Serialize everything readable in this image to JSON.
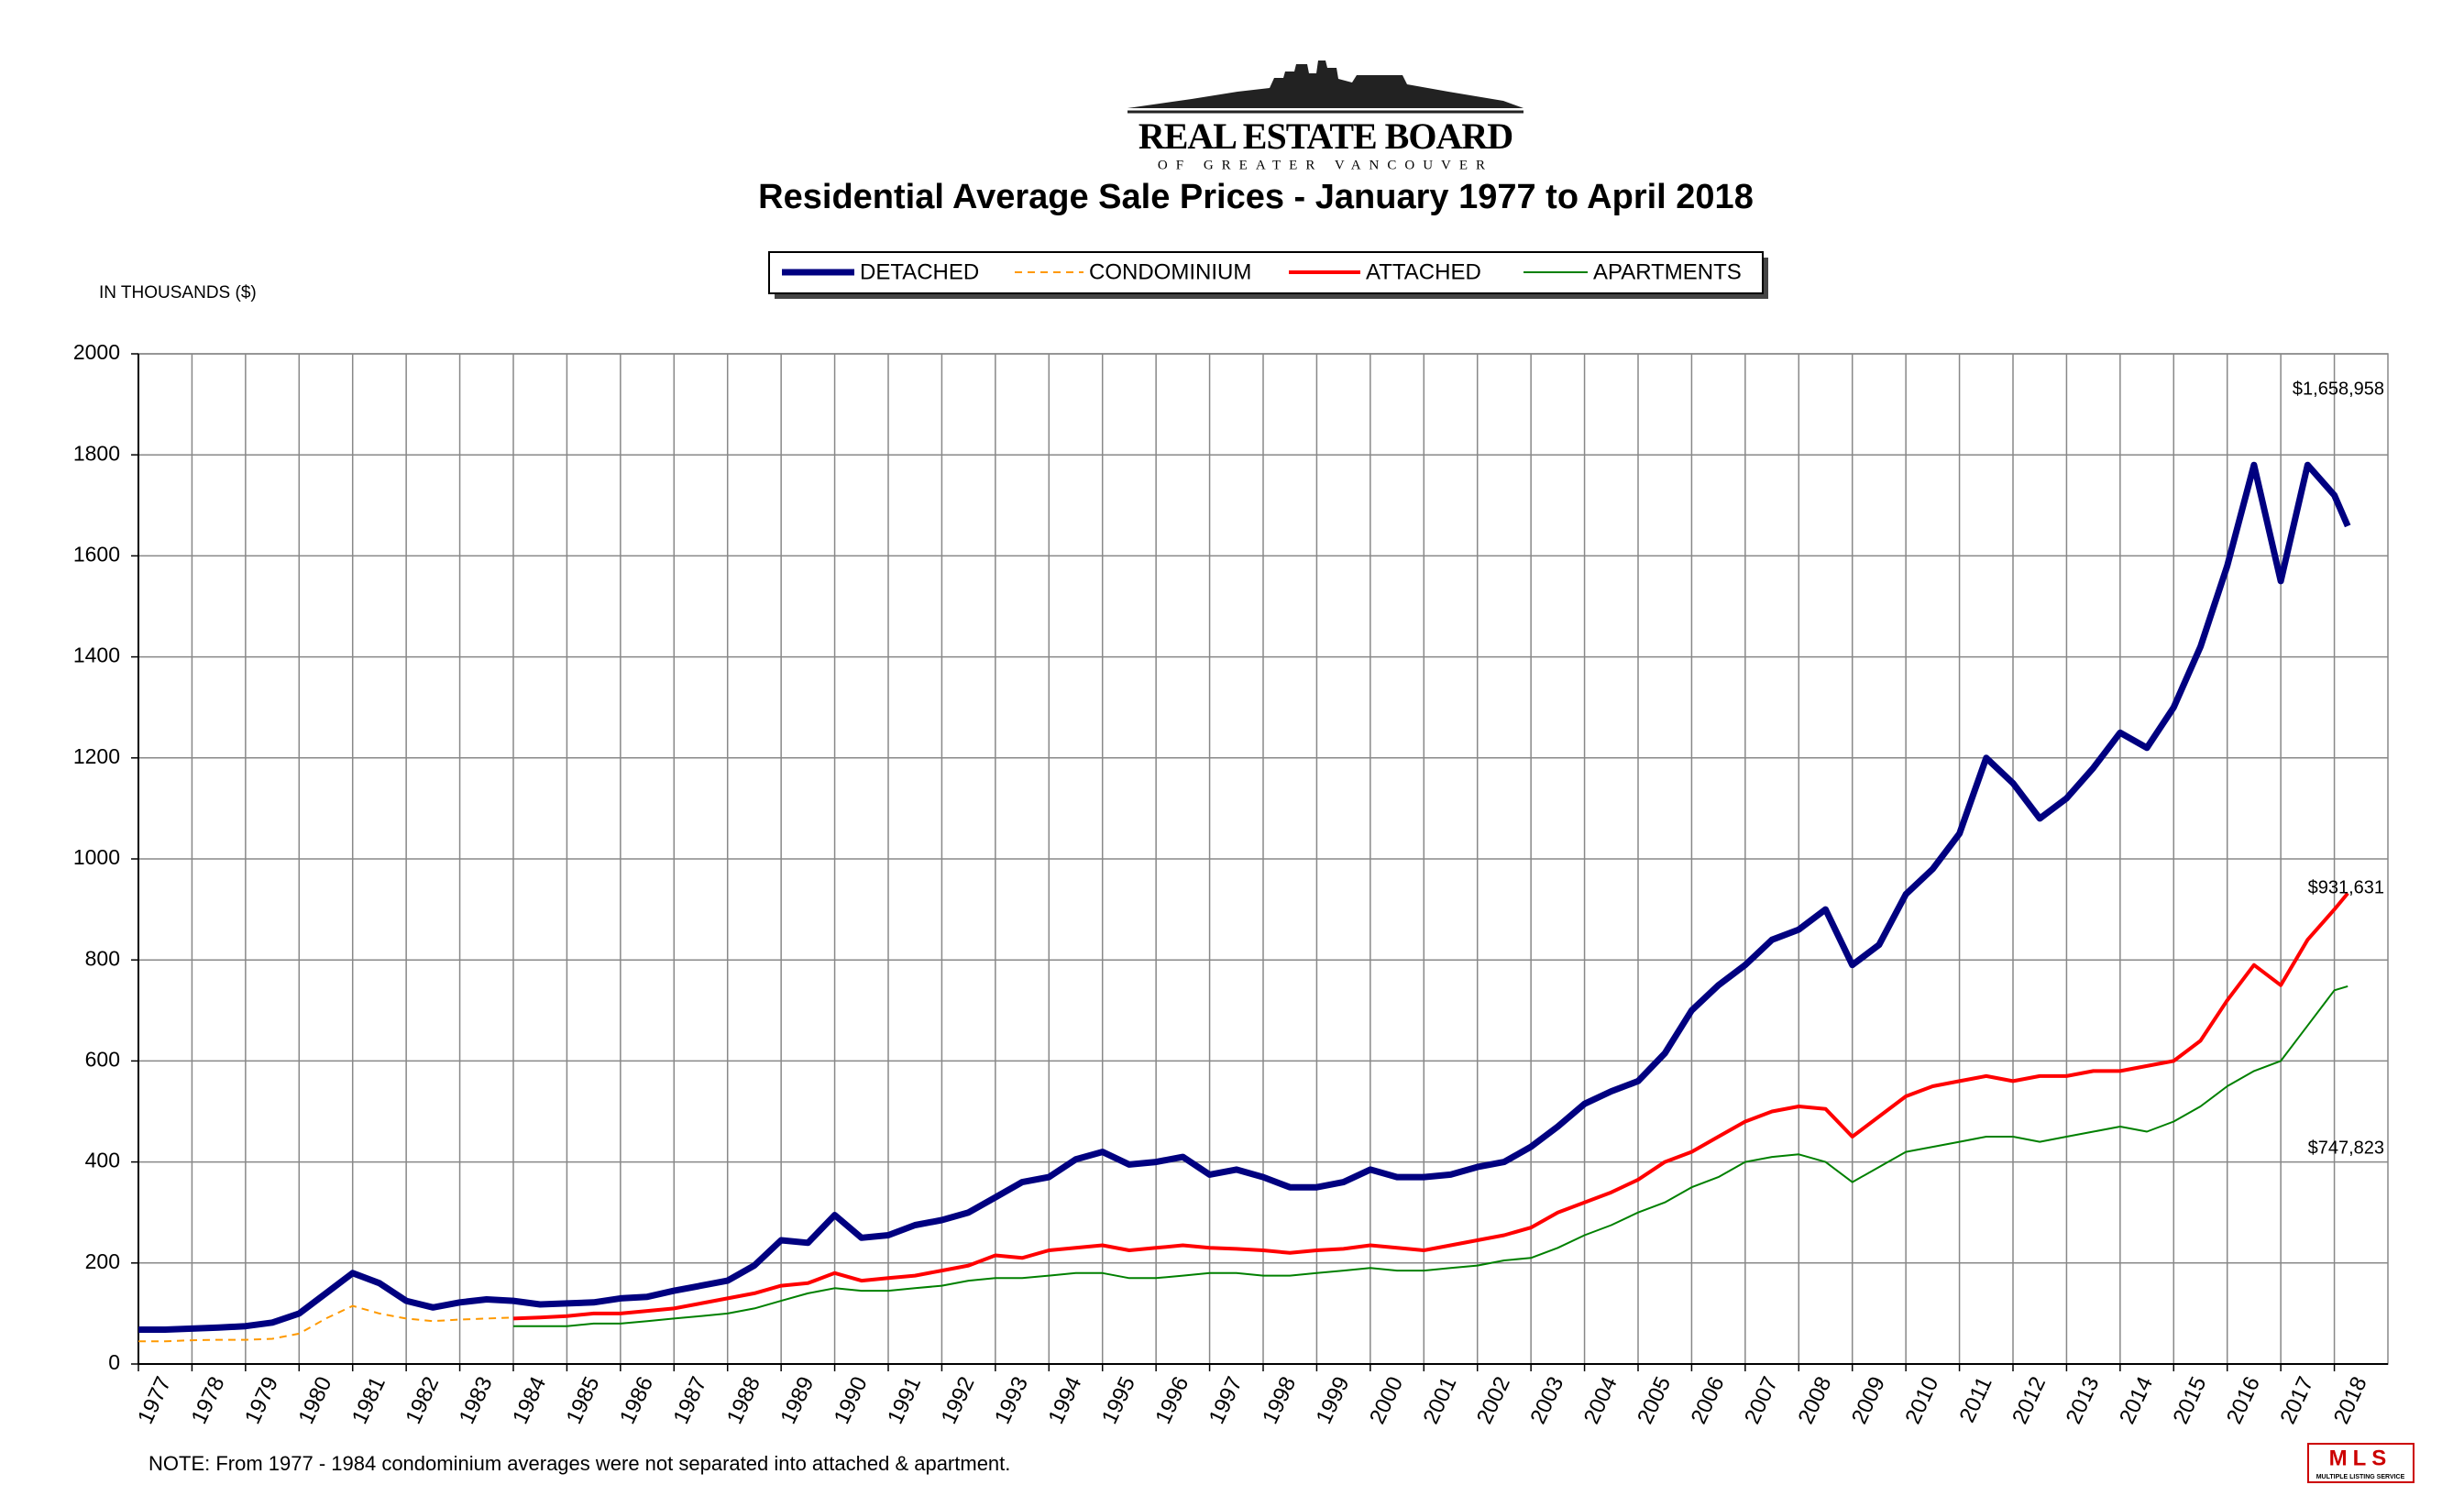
{
  "header": {
    "logo_title": "REAL ESTATE BOARD",
    "logo_subtitle": "OF GREATER VANCOUVER"
  },
  "chart_data": {
    "type": "line",
    "title": "Residential Average Sale Prices  -  January 1977 to April 2018",
    "y_label": "IN THOUSANDS ($)",
    "note": "NOTE:  From 1977 - 1984 condominium averages were not separated into attached & apartment.",
    "legend": "top-center",
    "grid": true,
    "xlim": [
      1977,
      2019
    ],
    "xticks": [
      1977,
      1978,
      1979,
      1980,
      1981,
      1982,
      1983,
      1984,
      1985,
      1986,
      1987,
      1988,
      1989,
      1990,
      1991,
      1992,
      1993,
      1994,
      1995,
      1996,
      1997,
      1998,
      1999,
      2000,
      2001,
      2002,
      2003,
      2004,
      2005,
      2006,
      2007,
      2008,
      2009,
      2010,
      2011,
      2012,
      2013,
      2014,
      2015,
      2016,
      2017,
      2018
    ],
    "ylim": [
      0,
      2000
    ],
    "yticks": [
      0,
      200,
      400,
      600,
      800,
      1000,
      1200,
      1400,
      1600,
      1800,
      2000
    ],
    "x": [
      1977,
      1977.5,
      1978,
      1978.5,
      1979,
      1979.5,
      1980,
      1980.5,
      1981,
      1981.5,
      1982,
      1982.5,
      1983,
      1983.5,
      1984,
      1984.5,
      1985,
      1985.5,
      1986,
      1986.5,
      1987,
      1987.5,
      1988,
      1988.5,
      1989,
      1989.5,
      1990,
      1990.5,
      1991,
      1991.5,
      1992,
      1992.5,
      1993,
      1993.5,
      1994,
      1994.5,
      1995,
      1995.5,
      1996,
      1996.5,
      1997,
      1997.5,
      1998,
      1998.5,
      1999,
      1999.5,
      2000,
      2000.5,
      2001,
      2001.5,
      2002,
      2002.5,
      2003,
      2003.5,
      2004,
      2004.5,
      2005,
      2005.5,
      2006,
      2006.5,
      2007,
      2007.5,
      2008,
      2008.5,
      2009,
      2009.5,
      2010,
      2010.5,
      2011,
      2011.5,
      2012,
      2012.5,
      2013,
      2013.5,
      2014,
      2014.5,
      2015,
      2015.5,
      2016,
      2016.5,
      2017,
      2017.5,
      2018,
      2018.25
    ],
    "series": [
      {
        "name": "DETACHED",
        "color": "#000080",
        "line_style": "solid",
        "end_label": "$1,658,958",
        "values": [
          68,
          68,
          70,
          72,
          75,
          82,
          100,
          140,
          180,
          160,
          125,
          112,
          122,
          128,
          125,
          118,
          120,
          122,
          130,
          133,
          145,
          155,
          165,
          195,
          245,
          240,
          295,
          250,
          255,
          275,
          285,
          300,
          330,
          360,
          370,
          405,
          420,
          395,
          400,
          410,
          375,
          385,
          370,
          350,
          350,
          360,
          385,
          370,
          370,
          375,
          390,
          400,
          430,
          470,
          515,
          540,
          560,
          615,
          700,
          750,
          790,
          840,
          860,
          900,
          790,
          830,
          930,
          980,
          1050,
          1200,
          1150,
          1080,
          1120,
          1180,
          1250,
          1220,
          1300,
          1420,
          1580,
          1780,
          1550,
          1780,
          1720,
          1659
        ]
      },
      {
        "name": "CONDOMINIUM",
        "color": "#ff9900",
        "line_style": "dashed",
        "values": [
          45,
          45,
          47,
          48,
          48,
          50,
          60,
          90,
          115,
          100,
          90,
          85,
          88,
          90,
          92,
          null,
          null,
          null,
          null,
          null,
          null,
          null,
          null,
          null,
          null,
          null,
          null,
          null,
          null,
          null,
          null,
          null,
          null,
          null,
          null,
          null,
          null,
          null,
          null,
          null,
          null,
          null,
          null,
          null,
          null,
          null,
          null,
          null,
          null,
          null,
          null,
          null,
          null,
          null,
          null,
          null,
          null,
          null,
          null,
          null,
          null,
          null,
          null,
          null,
          null,
          null,
          null,
          null,
          null,
          null,
          null,
          null,
          null,
          null,
          null,
          null,
          null,
          null,
          null,
          null,
          null,
          null,
          null,
          null
        ]
      },
      {
        "name": "ATTACHED",
        "color": "#ff0000",
        "line_style": "solid",
        "end_label": "$931,631",
        "values": [
          null,
          null,
          null,
          null,
          null,
          null,
          null,
          null,
          null,
          null,
          null,
          null,
          null,
          null,
          90,
          92,
          95,
          100,
          100,
          105,
          110,
          120,
          130,
          140,
          155,
          160,
          180,
          165,
          170,
          175,
          185,
          195,
          215,
          210,
          225,
          230,
          235,
          225,
          230,
          235,
          230,
          228,
          225,
          220,
          225,
          228,
          235,
          230,
          225,
          235,
          245,
          255,
          270,
          300,
          320,
          340,
          365,
          400,
          420,
          450,
          480,
          500,
          510,
          505,
          450,
          490,
          530,
          550,
          560,
          570,
          560,
          570,
          570,
          580,
          580,
          590,
          600,
          640,
          720,
          790,
          750,
          840,
          900,
          932
        ]
      },
      {
        "name": "APARTMENTS",
        "color": "#008000",
        "line_style": "solid",
        "end_label": "$747,823",
        "values": [
          null,
          null,
          null,
          null,
          null,
          null,
          null,
          null,
          null,
          null,
          null,
          null,
          null,
          null,
          75,
          75,
          75,
          80,
          80,
          85,
          90,
          95,
          100,
          110,
          125,
          140,
          150,
          145,
          145,
          150,
          155,
          165,
          170,
          170,
          175,
          180,
          180,
          170,
          170,
          175,
          180,
          180,
          175,
          175,
          180,
          185,
          190,
          185,
          185,
          190,
          195,
          205,
          210,
          230,
          255,
          275,
          300,
          320,
          350,
          370,
          400,
          410,
          415,
          400,
          360,
          390,
          420,
          430,
          440,
          450,
          450,
          440,
          450,
          460,
          470,
          460,
          480,
          510,
          550,
          580,
          600,
          670,
          740,
          748
        ]
      }
    ]
  },
  "footer": {
    "mls_logo": "MLS",
    "mls_caption": "MULTIPLE LISTING SERVICE"
  }
}
